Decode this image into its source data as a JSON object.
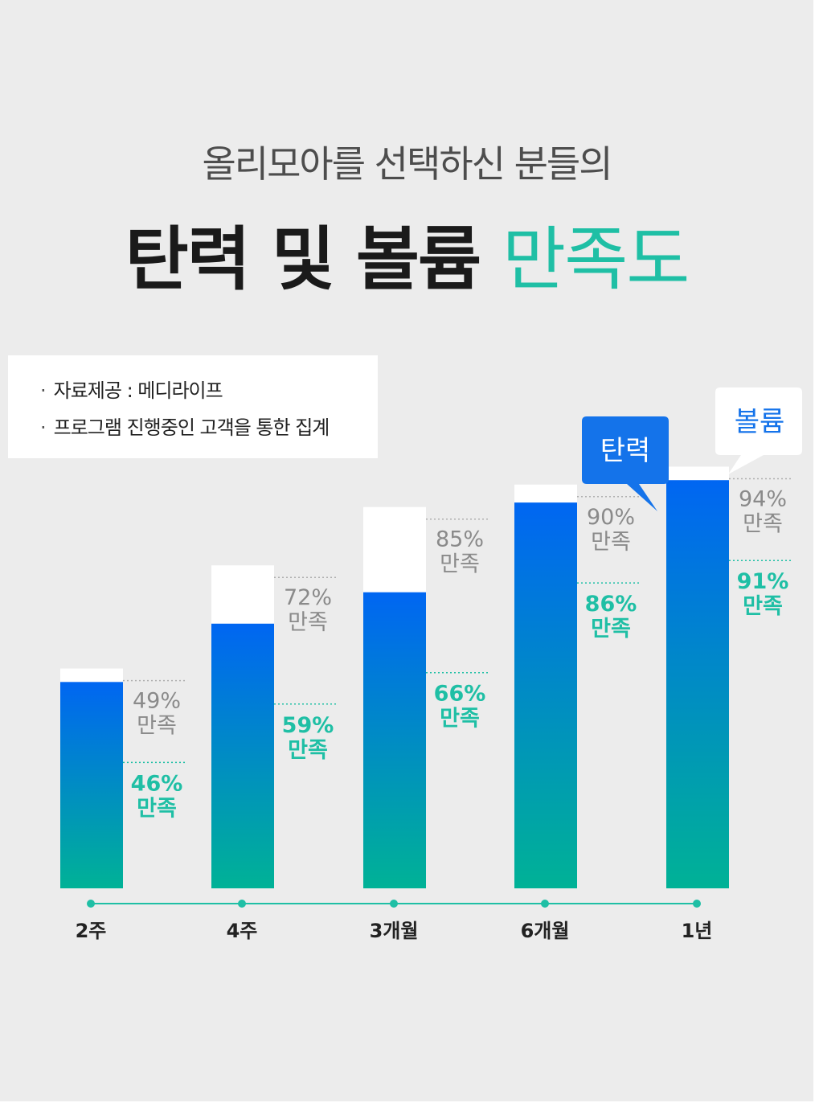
{
  "title": {
    "sub": "올리모아를 선택하신 분들의",
    "main_part": "탄력 및 볼륨 ",
    "main_highlight": "만족도"
  },
  "source": {
    "items": [
      "자료제공 : 메디라이프",
      "프로그램 진행중인 고객을 통한 집계"
    ]
  },
  "chart_data": {
    "type": "bar",
    "categories": [
      "2주",
      "4주",
      "3개월",
      "6개월",
      "1년"
    ],
    "series": [
      {
        "name": "볼륨",
        "values": [
          49,
          72,
          85,
          90,
          94
        ],
        "labels": [
          "49%",
          "72%",
          "85%",
          "90%",
          "94%"
        ]
      },
      {
        "name": "탄력",
        "values": [
          46,
          59,
          66,
          86,
          91
        ],
        "labels": [
          "46%",
          "59%",
          "66%",
          "86%",
          "91%"
        ]
      }
    ],
    "value_suffix_label": "만족",
    "ylim": [
      0,
      100
    ],
    "legend": {
      "elasticity_label": "탄력",
      "volume_label": "볼륨",
      "placement": "top-right"
    },
    "colors": {
      "bar_top": "#0066f2",
      "bar_bottom": "#00b296",
      "volume_label": "#8a8a8a",
      "elasticity_label": "#1fbfa5",
      "axis_line": "#1fbfa5",
      "elasticity_bubble": "#1473ea",
      "volume_bubble_text": "#1473ea"
    }
  }
}
